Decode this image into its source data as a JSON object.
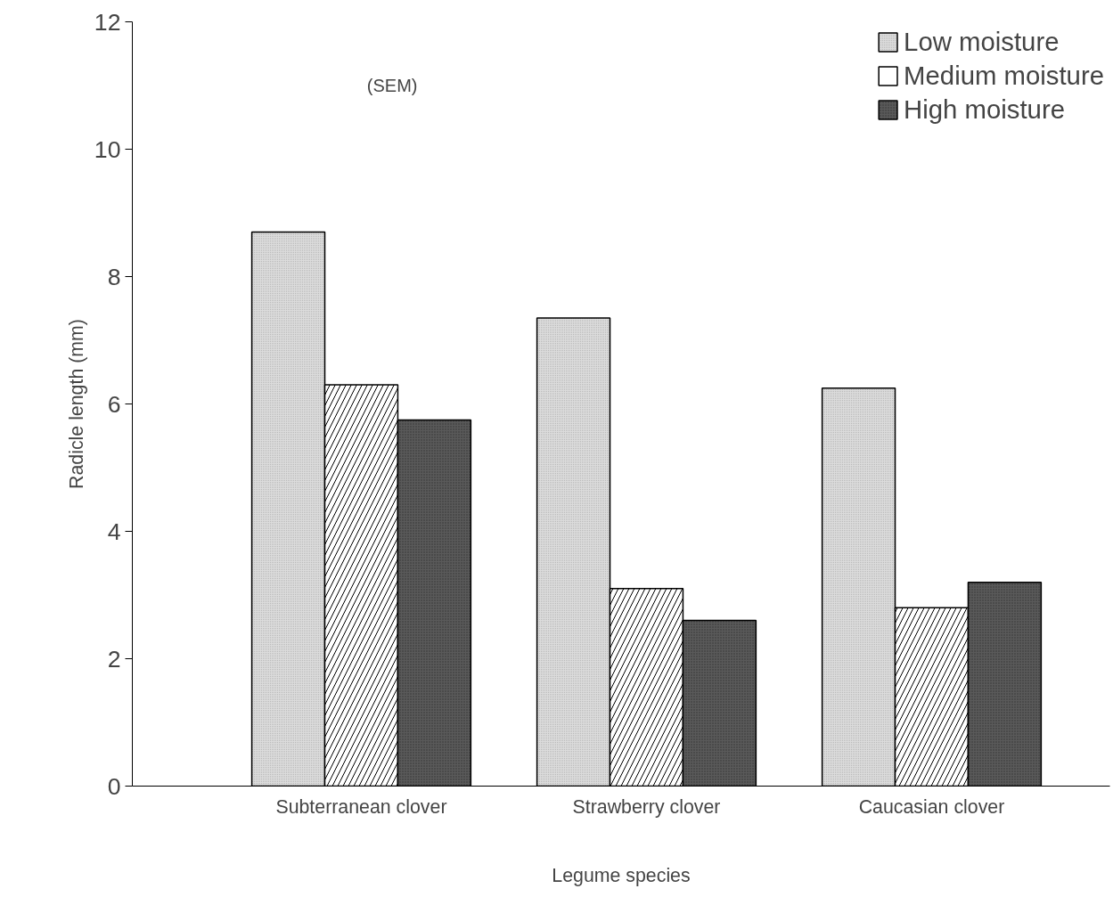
{
  "chart_data": {
    "type": "bar",
    "xlabel": "Legume species",
    "ylabel": "Radicle length (mm)",
    "categories": [
      "Subterranean clover",
      "Strawberry clover",
      "Caucasian clover"
    ],
    "series": [
      {
        "name": "Low moisture",
        "color": "#dcdcdc",
        "values": [
          8.7,
          7.35,
          6.25
        ]
      },
      {
        "name": "Medium moisture",
        "color": "#ffffff",
        "values": [
          6.3,
          3.1,
          2.8
        ]
      },
      {
        "name": "High moisture",
        "color": "#5a5a5a",
        "values": [
          5.75,
          2.6,
          3.2
        ]
      }
    ],
    "ylim": [
      0,
      12
    ],
    "yticks": [
      0,
      2,
      4,
      6,
      8,
      10,
      12
    ],
    "grid": false,
    "legend": "top right",
    "annotations": [
      "(SEM)"
    ]
  }
}
